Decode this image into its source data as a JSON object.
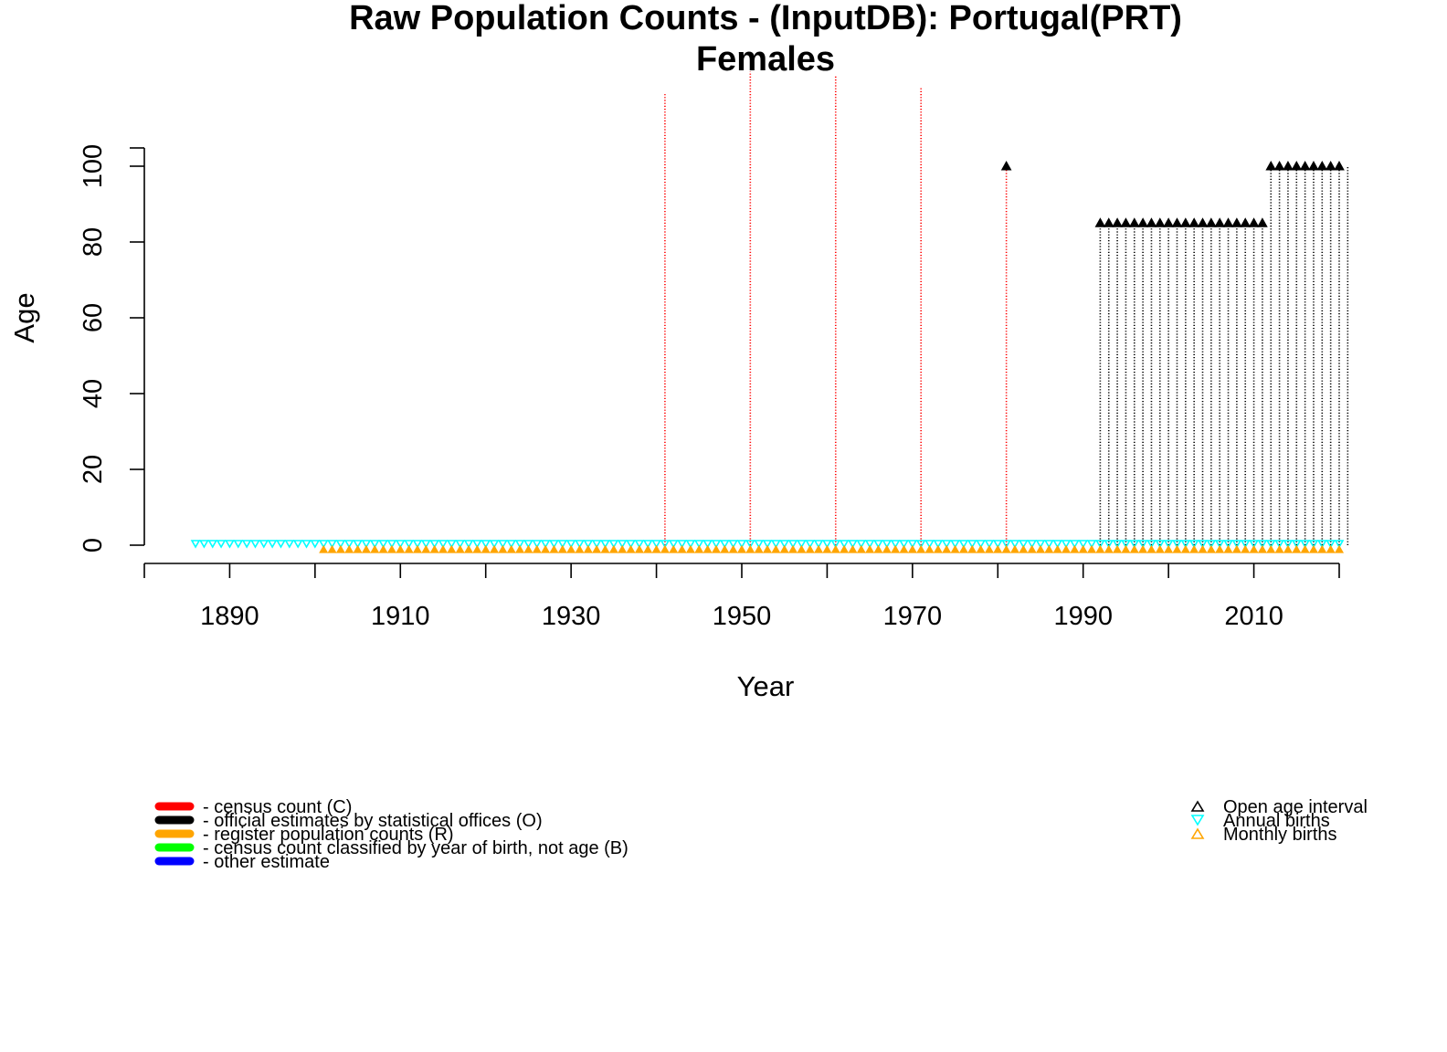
{
  "chart_data": {
    "type": "scatter",
    "title": "Raw Population Counts - (InputDB): Portugal(PRT)",
    "subtitle": "Females",
    "xlabel": "Year",
    "ylabel": "Age",
    "xlim": [
      1880,
      2020
    ],
    "ylim": [
      0,
      120
    ],
    "x_ticks": [
      "1890",
      "1910",
      "1930",
      "1950",
      "1970",
      "1990",
      "2010"
    ],
    "y_ticks": [
      "0",
      "20",
      "40",
      "60",
      "80",
      "100"
    ],
    "census_years": [
      {
        "year": 1941,
        "max_age": 119
      },
      {
        "year": 1951,
        "max_age": 125
      },
      {
        "year": 1961,
        "max_age": 124
      },
      {
        "year": 1971,
        "max_age": 121
      },
      {
        "year": 1981,
        "max_age": 100
      }
    ],
    "open_age_points": [
      {
        "year": 1981,
        "age": 100
      },
      {
        "year": 1992,
        "age": 85
      },
      {
        "year": 1993,
        "age": 85
      },
      {
        "year": 1994,
        "age": 85
      },
      {
        "year": 1995,
        "age": 85
      },
      {
        "year": 1996,
        "age": 85
      },
      {
        "year": 1997,
        "age": 85
      },
      {
        "year": 1998,
        "age": 85
      },
      {
        "year": 1999,
        "age": 85
      },
      {
        "year": 2000,
        "age": 85
      },
      {
        "year": 2001,
        "age": 85
      },
      {
        "year": 2002,
        "age": 85
      },
      {
        "year": 2003,
        "age": 85
      },
      {
        "year": 2004,
        "age": 85
      },
      {
        "year": 2005,
        "age": 85
      },
      {
        "year": 2006,
        "age": 85
      },
      {
        "year": 2007,
        "age": 85
      },
      {
        "year": 2008,
        "age": 85
      },
      {
        "year": 2009,
        "age": 85
      },
      {
        "year": 2010,
        "age": 85
      },
      {
        "year": 2011,
        "age": 85
      },
      {
        "year": 2012,
        "age": 100
      },
      {
        "year": 2013,
        "age": 100
      },
      {
        "year": 2014,
        "age": 100
      },
      {
        "year": 2015,
        "age": 100
      },
      {
        "year": 2016,
        "age": 100
      },
      {
        "year": 2017,
        "age": 100
      },
      {
        "year": 2018,
        "age": 100
      },
      {
        "year": 2019,
        "age": 100
      },
      {
        "year": 2020,
        "age": 100
      }
    ],
    "official_estimate_years": {
      "start": 1992,
      "end": 2021
    },
    "annual_births_years": {
      "start": 1886,
      "end": 2020
    },
    "monthly_births_years": {
      "start": 1901,
      "end": 2020
    },
    "legend_left": [
      {
        "label": "- census count (C)",
        "color": "#ff0000"
      },
      {
        "label": "- official estimates by statistical offices (O)",
        "color": "#000000"
      },
      {
        "label": "- register population counts (R)",
        "color": "#ffa500"
      },
      {
        "label": "- census count classified by year of birth, not age (B)",
        "color": "#00ff00"
      },
      {
        "label": "- other estimate",
        "color": "#0000ff"
      }
    ],
    "legend_right": [
      {
        "label": "Open age interval",
        "color": "#000000",
        "symbol": "triangle-up"
      },
      {
        "label": "Annual births",
        "color": "#00ffff",
        "symbol": "triangle-down"
      },
      {
        "label": "Monthly births",
        "color": "#ffa500",
        "symbol": "triangle-up"
      }
    ]
  }
}
